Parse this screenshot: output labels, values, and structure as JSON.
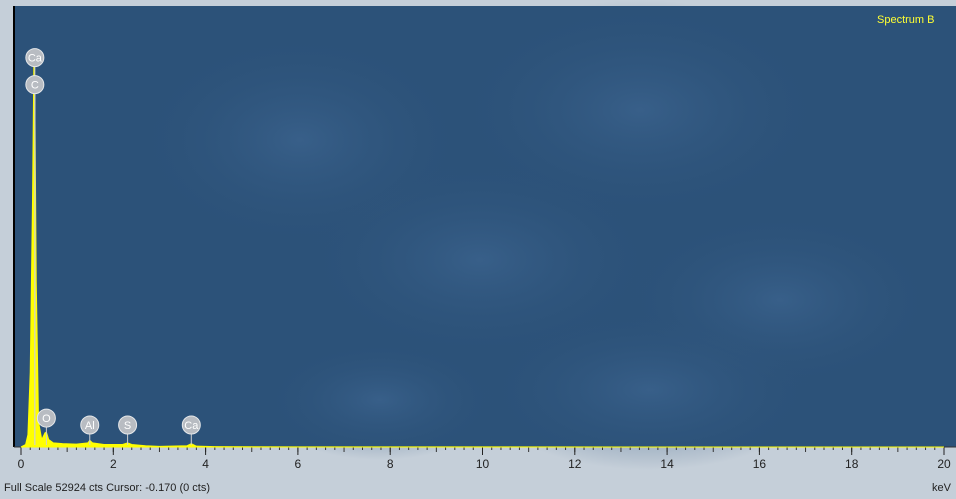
{
  "chart_data": {
    "type": "area",
    "title": "Spectrum B",
    "xlabel": "keV",
    "status": "Full Scale 52924 cts Cursor: -0.170  (0 cts)",
    "color": "#ffff00",
    "x": [
      0,
      0.1,
      0.15,
      0.2,
      0.25,
      0.28,
      0.3,
      0.33,
      0.38,
      0.45,
      0.52,
      0.55,
      0.6,
      0.7,
      0.9,
      1.2,
      1.45,
      1.49,
      1.55,
      1.8,
      2.2,
      2.31,
      2.4,
      2.7,
      3.0,
      3.6,
      3.69,
      3.8,
      4.2,
      6,
      10,
      15,
      20
    ],
    "values": [
      0,
      300,
      1500,
      9000,
      30000,
      47000,
      42000,
      20000,
      3000,
      900,
      1700,
      1800,
      900,
      500,
      400,
      350,
      500,
      800,
      500,
      300,
      300,
      500,
      300,
      150,
      80,
      150,
      400,
      100,
      50,
      20,
      10,
      5,
      0
    ],
    "xlim": [
      0,
      20
    ],
    "xticks": [
      0,
      2,
      4,
      6,
      8,
      10,
      12,
      14,
      16,
      18,
      20
    ],
    "ylim": [
      0,
      52924
    ],
    "annotations": [
      {
        "label": "Ca",
        "x": 0.3
      },
      {
        "label": "C",
        "x": 0.3
      },
      {
        "label": "O",
        "x": 0.55
      },
      {
        "label": "Al",
        "x": 1.49
      },
      {
        "label": "S",
        "x": 2.31
      },
      {
        "label": "Ca",
        "x": 3.69
      }
    ]
  }
}
